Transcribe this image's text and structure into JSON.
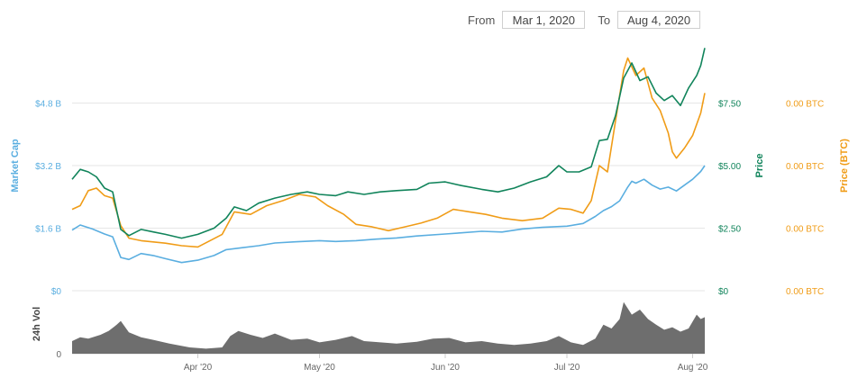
{
  "range_selector": {
    "from_label": "From",
    "from_value": "Mar 1, 2020",
    "to_label": "To",
    "to_value": "Aug 4, 2020"
  },
  "chart_data": {
    "type": "line",
    "x_range": [
      "2020-03-01",
      "2020-08-04"
    ],
    "x_ticks": [
      {
        "date": "2020-04-01",
        "label": "Apr '20"
      },
      {
        "date": "2020-05-01",
        "label": "May '20"
      },
      {
        "date": "2020-06-01",
        "label": "Jun '20"
      },
      {
        "date": "2020-07-01",
        "label": "Jul '20"
      },
      {
        "date": "2020-08-01",
        "label": "Aug '20"
      }
    ],
    "axes": {
      "market_cap": {
        "label": "Market Cap",
        "color": "#5aaee0",
        "range": [
          0,
          6.4
        ],
        "ticks": [
          "$0",
          "$1.6 B",
          "$3.2 B",
          "$4.8 B"
        ]
      },
      "price": {
        "label": "Price",
        "color": "#11845b",
        "range": [
          0,
          10
        ],
        "ticks": [
          "$0",
          "$2.50",
          "$5.00",
          "$7.50"
        ]
      },
      "price_btc": {
        "label": "Price (BTC)",
        "color": "#f09c17",
        "ticks": [
          "0.00 BTC",
          "0.00 BTC",
          "0.00 BTC",
          "0.00 BTC"
        ]
      },
      "volume": {
        "label": "24h Vol",
        "color": "#666666",
        "ticks": [
          "$0"
        ]
      }
    },
    "grid": true,
    "series": [
      {
        "key": "market_cap",
        "unit": "B USD",
        "values": [
          [
            "2020-03-01",
            1.55
          ],
          [
            "2020-03-03",
            1.68
          ],
          [
            "2020-03-06",
            1.58
          ],
          [
            "2020-03-09",
            1.45
          ],
          [
            "2020-03-11",
            1.38
          ],
          [
            "2020-03-13",
            0.85
          ],
          [
            "2020-03-15",
            0.8
          ],
          [
            "2020-03-18",
            0.95
          ],
          [
            "2020-03-21",
            0.9
          ],
          [
            "2020-03-24",
            0.82
          ],
          [
            "2020-03-28",
            0.72
          ],
          [
            "2020-04-01",
            0.78
          ],
          [
            "2020-04-05",
            0.9
          ],
          [
            "2020-04-08",
            1.05
          ],
          [
            "2020-04-12",
            1.1
          ],
          [
            "2020-04-16",
            1.15
          ],
          [
            "2020-04-20",
            1.22
          ],
          [
            "2020-04-25",
            1.25
          ],
          [
            "2020-05-01",
            1.28
          ],
          [
            "2020-05-05",
            1.26
          ],
          [
            "2020-05-10",
            1.28
          ],
          [
            "2020-05-15",
            1.32
          ],
          [
            "2020-05-20",
            1.35
          ],
          [
            "2020-05-25",
            1.4
          ],
          [
            "2020-06-01",
            1.45
          ],
          [
            "2020-06-05",
            1.48
          ],
          [
            "2020-06-10",
            1.52
          ],
          [
            "2020-06-15",
            1.5
          ],
          [
            "2020-06-20",
            1.58
          ],
          [
            "2020-06-25",
            1.62
          ],
          [
            "2020-07-01",
            1.65
          ],
          [
            "2020-07-05",
            1.72
          ],
          [
            "2020-07-08",
            1.9
          ],
          [
            "2020-07-10",
            2.05
          ],
          [
            "2020-07-12",
            2.15
          ],
          [
            "2020-07-14",
            2.3
          ],
          [
            "2020-07-16",
            2.65
          ],
          [
            "2020-07-17",
            2.8
          ],
          [
            "2020-07-18",
            2.75
          ],
          [
            "2020-07-20",
            2.85
          ],
          [
            "2020-07-22",
            2.7
          ],
          [
            "2020-07-24",
            2.6
          ],
          [
            "2020-07-26",
            2.65
          ],
          [
            "2020-07-28",
            2.55
          ],
          [
            "2020-07-30",
            2.7
          ],
          [
            "2020-08-01",
            2.85
          ],
          [
            "2020-08-03",
            3.05
          ],
          [
            "2020-08-04",
            3.2
          ]
        ]
      },
      {
        "key": "price",
        "unit": "USD",
        "values": [
          [
            "2020-03-01",
            4.45
          ],
          [
            "2020-03-03",
            4.85
          ],
          [
            "2020-03-05",
            4.75
          ],
          [
            "2020-03-07",
            4.55
          ],
          [
            "2020-03-09",
            4.1
          ],
          [
            "2020-03-11",
            3.95
          ],
          [
            "2020-03-13",
            2.45
          ],
          [
            "2020-03-15",
            2.2
          ],
          [
            "2020-03-18",
            2.45
          ],
          [
            "2020-03-21",
            2.35
          ],
          [
            "2020-03-24",
            2.25
          ],
          [
            "2020-03-28",
            2.1
          ],
          [
            "2020-04-01",
            2.25
          ],
          [
            "2020-04-05",
            2.5
          ],
          [
            "2020-04-08",
            2.9
          ],
          [
            "2020-04-10",
            3.35
          ],
          [
            "2020-04-13",
            3.2
          ],
          [
            "2020-04-16",
            3.5
          ],
          [
            "2020-04-20",
            3.7
          ],
          [
            "2020-04-24",
            3.85
          ],
          [
            "2020-04-28",
            3.95
          ],
          [
            "2020-05-01",
            3.85
          ],
          [
            "2020-05-05",
            3.8
          ],
          [
            "2020-05-08",
            3.95
          ],
          [
            "2020-05-12",
            3.85
          ],
          [
            "2020-05-16",
            3.95
          ],
          [
            "2020-05-20",
            4.0
          ],
          [
            "2020-05-25",
            4.05
          ],
          [
            "2020-05-28",
            4.3
          ],
          [
            "2020-06-01",
            4.35
          ],
          [
            "2020-06-05",
            4.2
          ],
          [
            "2020-06-10",
            4.05
          ],
          [
            "2020-06-14",
            3.95
          ],
          [
            "2020-06-18",
            4.1
          ],
          [
            "2020-06-22",
            4.35
          ],
          [
            "2020-06-26",
            4.55
          ],
          [
            "2020-06-29",
            5.0
          ],
          [
            "2020-07-01",
            4.75
          ],
          [
            "2020-07-04",
            4.75
          ],
          [
            "2020-07-07",
            4.95
          ],
          [
            "2020-07-09",
            6.0
          ],
          [
            "2020-07-11",
            6.05
          ],
          [
            "2020-07-13",
            7.0
          ],
          [
            "2020-07-15",
            8.5
          ],
          [
            "2020-07-17",
            9.1
          ],
          [
            "2020-07-19",
            8.4
          ],
          [
            "2020-07-21",
            8.55
          ],
          [
            "2020-07-23",
            7.9
          ],
          [
            "2020-07-25",
            7.6
          ],
          [
            "2020-07-27",
            7.8
          ],
          [
            "2020-07-29",
            7.4
          ],
          [
            "2020-07-31",
            8.1
          ],
          [
            "2020-08-02",
            8.6
          ],
          [
            "2020-08-03",
            9.0
          ],
          [
            "2020-08-04",
            9.7
          ]
        ]
      },
      {
        "key": "price_btc",
        "unit": "BTC (relative)",
        "values": [
          [
            "2020-03-01",
            3.25
          ],
          [
            "2020-03-03",
            3.4
          ],
          [
            "2020-03-05",
            4.0
          ],
          [
            "2020-03-07",
            4.1
          ],
          [
            "2020-03-09",
            3.8
          ],
          [
            "2020-03-11",
            3.7
          ],
          [
            "2020-03-13",
            2.6
          ],
          [
            "2020-03-15",
            2.1
          ],
          [
            "2020-03-18",
            2.0
          ],
          [
            "2020-03-21",
            1.95
          ],
          [
            "2020-03-24",
            1.9
          ],
          [
            "2020-03-28",
            1.8
          ],
          [
            "2020-04-01",
            1.75
          ],
          [
            "2020-04-04",
            2.0
          ],
          [
            "2020-04-07",
            2.25
          ],
          [
            "2020-04-10",
            3.15
          ],
          [
            "2020-04-14",
            3.05
          ],
          [
            "2020-04-18",
            3.4
          ],
          [
            "2020-04-22",
            3.6
          ],
          [
            "2020-04-26",
            3.85
          ],
          [
            "2020-04-30",
            3.75
          ],
          [
            "2020-05-03",
            3.4
          ],
          [
            "2020-05-07",
            3.05
          ],
          [
            "2020-05-10",
            2.65
          ],
          [
            "2020-05-14",
            2.55
          ],
          [
            "2020-05-18",
            2.4
          ],
          [
            "2020-05-22",
            2.55
          ],
          [
            "2020-05-26",
            2.7
          ],
          [
            "2020-05-30",
            2.9
          ],
          [
            "2020-06-03",
            3.25
          ],
          [
            "2020-06-07",
            3.15
          ],
          [
            "2020-06-11",
            3.05
          ],
          [
            "2020-06-15",
            2.9
          ],
          [
            "2020-06-20",
            2.8
          ],
          [
            "2020-06-25",
            2.9
          ],
          [
            "2020-06-29",
            3.3
          ],
          [
            "2020-07-02",
            3.25
          ],
          [
            "2020-07-05",
            3.1
          ],
          [
            "2020-07-07",
            3.6
          ],
          [
            "2020-07-09",
            5.0
          ],
          [
            "2020-07-11",
            4.75
          ],
          [
            "2020-07-13",
            6.8
          ],
          [
            "2020-07-15",
            8.8
          ],
          [
            "2020-07-16",
            9.3
          ],
          [
            "2020-07-18",
            8.6
          ],
          [
            "2020-07-20",
            8.9
          ],
          [
            "2020-07-22",
            7.7
          ],
          [
            "2020-07-24",
            7.2
          ],
          [
            "2020-07-26",
            6.3
          ],
          [
            "2020-07-27",
            5.55
          ],
          [
            "2020-07-28",
            5.3
          ],
          [
            "2020-07-30",
            5.7
          ],
          [
            "2020-08-01",
            6.2
          ],
          [
            "2020-08-03",
            7.1
          ],
          [
            "2020-08-04",
            7.9
          ]
        ]
      },
      {
        "key": "volume",
        "unit": "relative",
        "values": [
          [
            "2020-03-01",
            0.2
          ],
          [
            "2020-03-03",
            0.26
          ],
          [
            "2020-03-05",
            0.24
          ],
          [
            "2020-03-08",
            0.3
          ],
          [
            "2020-03-10",
            0.36
          ],
          [
            "2020-03-12",
            0.46
          ],
          [
            "2020-03-13",
            0.52
          ],
          [
            "2020-03-15",
            0.34
          ],
          [
            "2020-03-18",
            0.26
          ],
          [
            "2020-03-21",
            0.22
          ],
          [
            "2020-03-25",
            0.16
          ],
          [
            "2020-03-30",
            0.1
          ],
          [
            "2020-04-03",
            0.08
          ],
          [
            "2020-04-07",
            0.1
          ],
          [
            "2020-04-09",
            0.28
          ],
          [
            "2020-04-11",
            0.36
          ],
          [
            "2020-04-14",
            0.3
          ],
          [
            "2020-04-17",
            0.25
          ],
          [
            "2020-04-20",
            0.32
          ],
          [
            "2020-04-24",
            0.22
          ],
          [
            "2020-04-28",
            0.24
          ],
          [
            "2020-05-01",
            0.18
          ],
          [
            "2020-05-05",
            0.22
          ],
          [
            "2020-05-09",
            0.28
          ],
          [
            "2020-05-12",
            0.2
          ],
          [
            "2020-05-16",
            0.18
          ],
          [
            "2020-05-20",
            0.16
          ],
          [
            "2020-05-25",
            0.19
          ],
          [
            "2020-05-29",
            0.24
          ],
          [
            "2020-06-02",
            0.25
          ],
          [
            "2020-06-06",
            0.18
          ],
          [
            "2020-06-10",
            0.2
          ],
          [
            "2020-06-14",
            0.16
          ],
          [
            "2020-06-18",
            0.14
          ],
          [
            "2020-06-22",
            0.16
          ],
          [
            "2020-06-26",
            0.2
          ],
          [
            "2020-06-29",
            0.28
          ],
          [
            "2020-07-02",
            0.18
          ],
          [
            "2020-07-05",
            0.14
          ],
          [
            "2020-07-08",
            0.24
          ],
          [
            "2020-07-10",
            0.46
          ],
          [
            "2020-07-12",
            0.4
          ],
          [
            "2020-07-14",
            0.55
          ],
          [
            "2020-07-15",
            0.82
          ],
          [
            "2020-07-16",
            0.72
          ],
          [
            "2020-07-17",
            0.62
          ],
          [
            "2020-07-19",
            0.7
          ],
          [
            "2020-07-21",
            0.55
          ],
          [
            "2020-07-23",
            0.46
          ],
          [
            "2020-07-25",
            0.38
          ],
          [
            "2020-07-27",
            0.42
          ],
          [
            "2020-07-29",
            0.35
          ],
          [
            "2020-07-31",
            0.4
          ],
          [
            "2020-08-02",
            0.62
          ],
          [
            "2020-08-03",
            0.55
          ],
          [
            "2020-08-04",
            0.58
          ]
        ]
      }
    ]
  }
}
